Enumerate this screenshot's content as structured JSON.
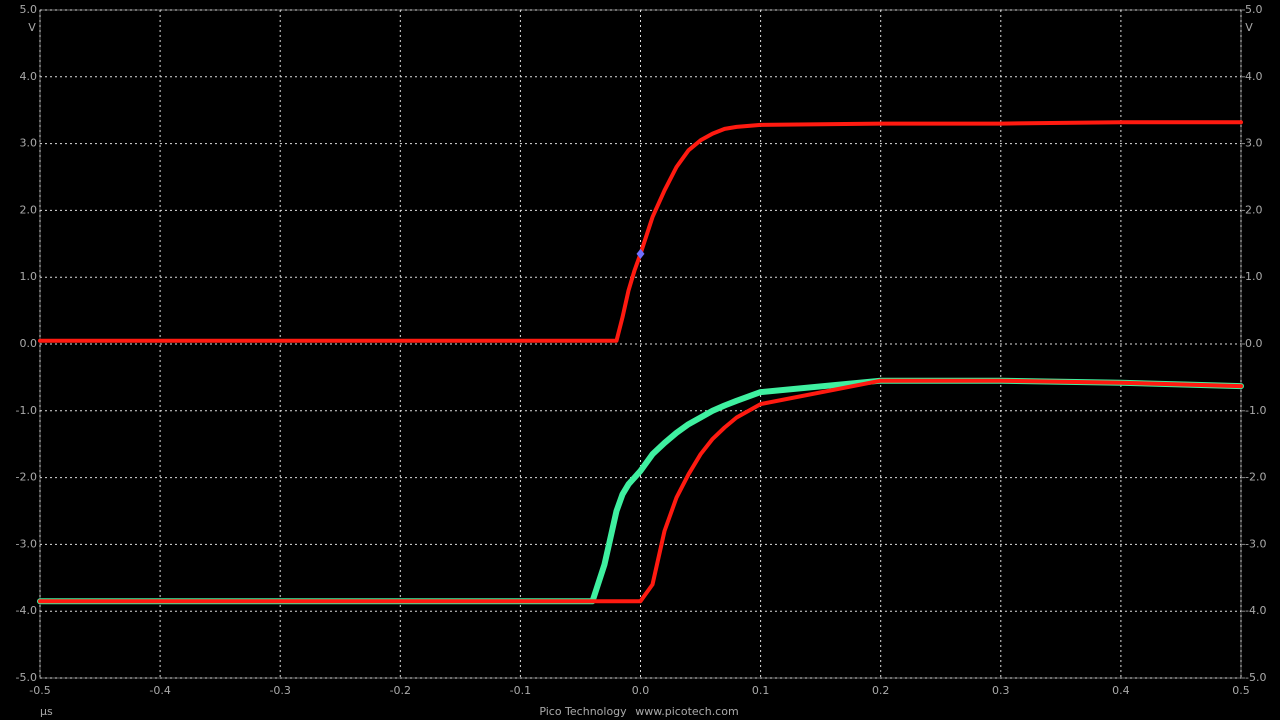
{
  "chart_data": {
    "type": "line",
    "x_unit": "µs",
    "y_unit": "V",
    "footer": [
      "Pico Technology",
      "www.picotech.com"
    ],
    "x": [
      -0.5,
      -0.1,
      -0.04,
      -0.03,
      -0.02,
      -0.015,
      -0.01,
      -0.005,
      0,
      0.01,
      0.02,
      0.03,
      0.04,
      0.05,
      0.06,
      0.07,
      0.08,
      0.1,
      0.2,
      0.3,
      0.4,
      0.5
    ],
    "series": [
      {
        "color": "#3ff0a0",
        "values": [
          -3.85,
          -3.85,
          -3.85,
          -3.3,
          -2.5,
          -2.25,
          -2.1,
          -2.0,
          -1.9,
          -1.65,
          -1.48,
          -1.33,
          -1.2,
          -1.1,
          -1.0,
          -0.92,
          -0.85,
          -0.72,
          -0.55,
          -0.55,
          -0.58,
          -0.63
        ]
      },
      {
        "color": "#ff1a10",
        "values": [
          0.05,
          0.05,
          0.05,
          0.05,
          0.05,
          0.4,
          0.8,
          1.1,
          1.35,
          1.9,
          2.3,
          2.65,
          2.9,
          3.05,
          3.15,
          3.22,
          3.25,
          3.28,
          3.3,
          3.3,
          3.32,
          3.32
        ]
      },
      {
        "color": "#ff1a10",
        "values": [
          -3.85,
          -3.85,
          -3.85,
          -3.85,
          -3.85,
          -3.85,
          -3.85,
          -3.85,
          -3.85,
          -3.6,
          -2.8,
          -2.3,
          -1.95,
          -1.65,
          -1.42,
          -1.25,
          -1.1,
          -0.9,
          -0.55,
          -0.55,
          -0.58,
          -0.63
        ]
      }
    ],
    "trigger": {
      "x": 0,
      "y": 1.35,
      "color": "#7070ff"
    },
    "xlim": [
      -0.5,
      0.5
    ],
    "xticks": [
      -0.5,
      -0.4,
      -0.3,
      -0.2,
      -0.1,
      {
        "value": 0,
        "label": "0.0"
      },
      0.1,
      0.2,
      0.3,
      0.4,
      0.5
    ],
    "ylim": [
      -5,
      5
    ],
    "yticks": [
      {
        "value": -5,
        "label": "-5.0"
      },
      {
        "value": -4,
        "label": "-4.0"
      },
      {
        "value": -3,
        "label": "-3.0"
      },
      {
        "value": -2,
        "label": "-2.0"
      },
      {
        "value": -1,
        "label": "-1.0"
      },
      {
        "value": 0,
        "label": "0.0"
      },
      {
        "value": 1,
        "label": "1.0"
      },
      {
        "value": 2,
        "label": "2.0"
      },
      {
        "value": 3,
        "label": "3.0"
      },
      {
        "value": 4,
        "label": "4.0"
      },
      {
        "value": 5,
        "label": "5.0"
      }
    ],
    "y_color": "#2020d0",
    "y2lim": [
      -5,
      5
    ],
    "y2ticks": [
      {
        "value": -5,
        "label": "-5.0"
      },
      {
        "value": -4,
        "label": "-4.0"
      },
      {
        "value": -3,
        "label": "-3.0"
      },
      {
        "value": -2,
        "label": "-2.0"
      },
      {
        "value": -1,
        "label": "-1.0"
      },
      {
        "value": 0,
        "label": "0.0"
      },
      {
        "value": 1,
        "label": "1.0"
      },
      {
        "value": 2,
        "label": "2.0"
      },
      {
        "value": 3,
        "label": "3.0"
      },
      {
        "value": 4,
        "label": "4.0"
      },
      {
        "value": 5,
        "label": "5.0"
      }
    ],
    "y2_color": "#e02020",
    "grid": true
  }
}
